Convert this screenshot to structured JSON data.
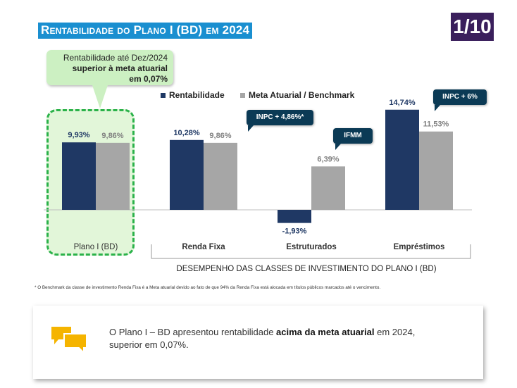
{
  "title": "Rentabilidade do Plano I (BD) em 2024",
  "page_indicator": "1/10",
  "callout": {
    "line1": "Rentabilidade até Dez/2024",
    "line2": "superior à meta atuarial",
    "line3": "em 0,07%"
  },
  "legend": {
    "rentabilidade": "Rentabilidade",
    "meta": "Meta Atuarial / Benchmark"
  },
  "tags": {
    "renda_fixa": "INPC + 4,86%*",
    "estruturados": "IFMM",
    "emprestimos": "INPC + 6%"
  },
  "group_caption": "DESEMPENHO DAS CLASSES DE INVESTIMENTO DO PLANO I (BD)",
  "footnote": "* O Benchmark da classe de investimento Renda Fixa é a Meta atuarial devido ao fato de que 94% da Renda Fixa está alocada em títulos públicos marcados até o vencimento.",
  "summary": {
    "text_before": "O Plano I – BD apresentou rentabilidade ",
    "text_bold": "acima da meta atuarial",
    "text_after": " em 2024,",
    "line2": "superior em 0,07%."
  },
  "colors": {
    "rentabilidade": "#1f3864",
    "meta": "#a6a6a6",
    "title_bg": "#1a8fd0",
    "badge_bg": "#3a1f5c",
    "tag_bg": "#0b3a55",
    "highlight_border": "#2bb24a",
    "icon": "#f5b400"
  },
  "icon": "chat-bubbles-icon",
  "chart_data": {
    "type": "bar",
    "title": "",
    "xlabel": "",
    "ylabel": "",
    "categories": [
      "Plano I (BD)",
      "Renda Fixa",
      "Estruturados",
      "Empréstimos"
    ],
    "series": [
      {
        "name": "Rentabilidade",
        "values": [
          9.93,
          10.28,
          -1.93,
          14.74
        ],
        "labels": [
          "9,93%",
          "10,28%",
          "-1,93%",
          "14,74%"
        ]
      },
      {
        "name": "Meta Atuarial / Benchmark",
        "values": [
          9.86,
          9.86,
          6.39,
          11.53
        ],
        "labels": [
          "9,86%",
          "9,86%",
          "6,39%",
          "11,53%"
        ]
      }
    ],
    "ylim": [
      -2.5,
      15
    ],
    "grid": false,
    "legend": "top-right"
  }
}
